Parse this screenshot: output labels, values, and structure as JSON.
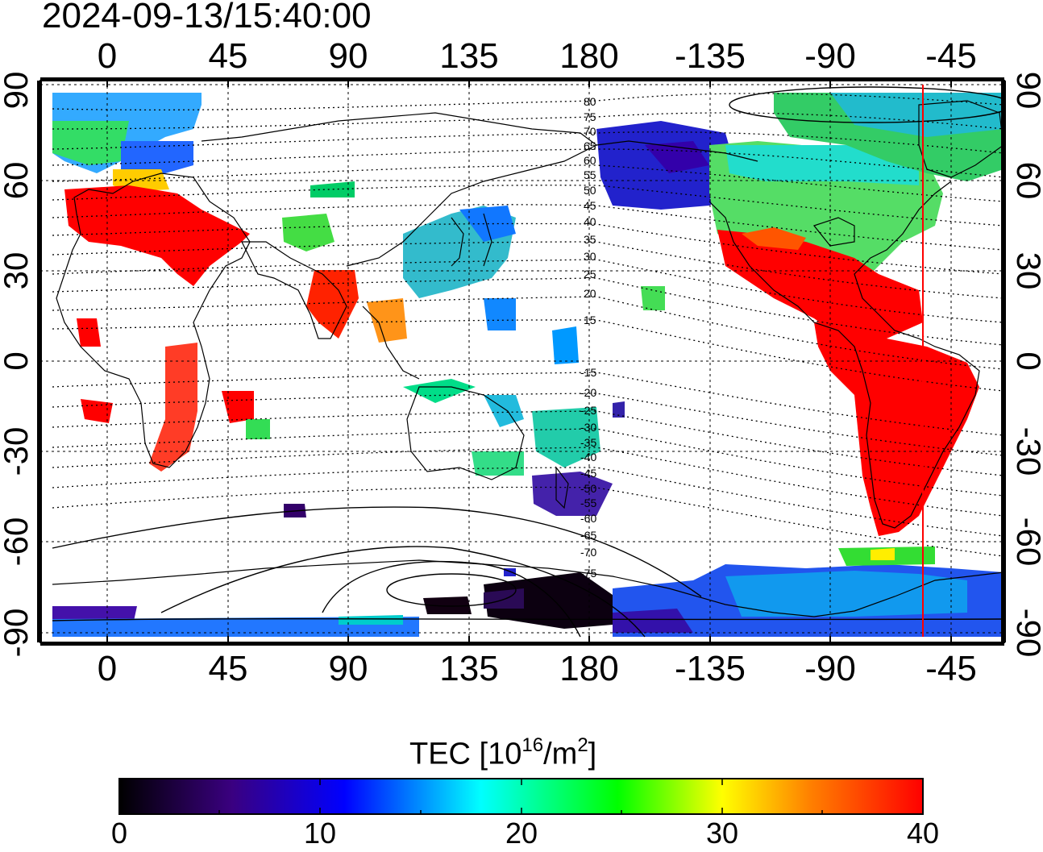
{
  "timestamp": "2024-09-13/15:40:00",
  "map": {
    "lon_ticks": [
      "0",
      "45",
      "90",
      "135",
      "180",
      "-135",
      "-90",
      "-45"
    ],
    "lat_ticks": [
      "90",
      "60",
      "30",
      "0",
      "-30",
      "-60",
      "-90"
    ],
    "contour_labels": [
      "80",
      "75",
      "70",
      "65",
      "60",
      "55",
      "50",
      "45",
      "40",
      "35",
      "30",
      "25",
      "20",
      "15",
      "-15",
      "-20",
      "-25",
      "-30",
      "-35",
      "-40",
      "-45",
      "-50",
      "-55",
      "-60",
      "-65",
      "-70",
      "-75"
    ],
    "colors": {
      "terminator_line": "#ff0000",
      "grid": "#000000",
      "coast": "#000000"
    }
  },
  "colorbar": {
    "label_prefix": "TEC  [10",
    "label_exp1": "16",
    "label_mid": "/m",
    "label_exp2": "2",
    "label_suffix": "]",
    "ticks": [
      "0",
      "10",
      "20",
      "30",
      "40"
    ],
    "range": [
      0,
      40
    ],
    "colormap": [
      "#000000",
      "#3a0080",
      "#0000ff",
      "#00ffff",
      "#00ff00",
      "#ffff00",
      "#ff8000",
      "#ff0000"
    ]
  }
}
